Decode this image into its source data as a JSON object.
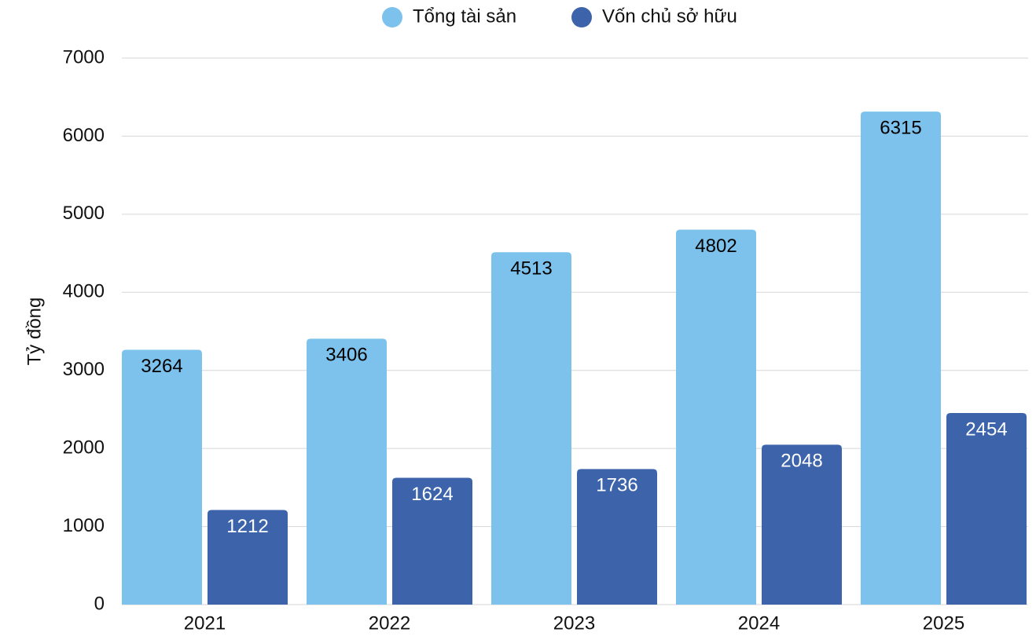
{
  "chart_data": {
    "type": "bar",
    "y_label": "Tỷ đồng",
    "categories": [
      "2021",
      "2022",
      "2023",
      "2024",
      "2025"
    ],
    "series": [
      {
        "name": "Tổng tài sản",
        "color": "#7cc2ec",
        "label_color": "#000000",
        "values": [
          3264,
          3406,
          4513,
          4802,
          6315
        ]
      },
      {
        "name": "Vốn chủ sở hữu",
        "color": "#3d64ab",
        "label_color": "#ffffff",
        "values": [
          1212,
          1624,
          1736,
          2048,
          2454
        ]
      }
    ],
    "ylim": [
      0,
      7000
    ],
    "yticks": [
      0,
      1000,
      2000,
      3000,
      4000,
      5000,
      6000,
      7000
    ],
    "grid": true,
    "legend": "top"
  }
}
